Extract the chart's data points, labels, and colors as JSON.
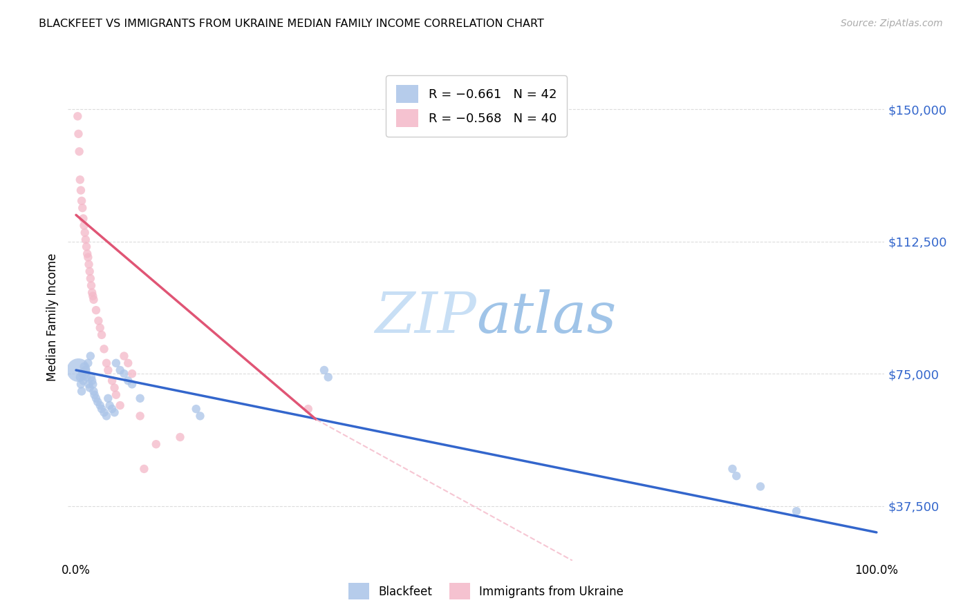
{
  "title": "BLACKFEET VS IMMIGRANTS FROM UKRAINE MEDIAN FAMILY INCOME CORRELATION CHART",
  "source": "Source: ZipAtlas.com",
  "ylabel": "Median Family Income",
  "background_color": "#ffffff",
  "grid_color": "#cccccc",
  "watermark_zip": "ZIP",
  "watermark_atlas": "atlas",
  "blue_color": "#aac4e8",
  "pink_color": "#f4b8c8",
  "blue_line_color": "#3366cc",
  "pink_line_color": "#e05575",
  "pink_dash_color": "#f4b8c8",
  "legend_label1": "Blackfeet",
  "legend_label2": "Immigrants from Ukraine",
  "blue_scatter": [
    [
      0.003,
      76000
    ],
    [
      0.005,
      74000
    ],
    [
      0.006,
      72000
    ],
    [
      0.007,
      70000
    ],
    [
      0.008,
      75000
    ],
    [
      0.009,
      73000
    ],
    [
      0.01,
      77000
    ],
    [
      0.012,
      76000
    ],
    [
      0.013,
      74000
    ],
    [
      0.015,
      78000
    ],
    [
      0.016,
      72000
    ],
    [
      0.017,
      71000
    ],
    [
      0.018,
      80000
    ],
    [
      0.019,
      74000
    ],
    [
      0.02,
      73000
    ],
    [
      0.021,
      72000
    ],
    [
      0.022,
      70000
    ],
    [
      0.023,
      69000
    ],
    [
      0.025,
      68000
    ],
    [
      0.027,
      67000
    ],
    [
      0.03,
      66000
    ],
    [
      0.032,
      65000
    ],
    [
      0.035,
      64000
    ],
    [
      0.038,
      63000
    ],
    [
      0.04,
      68000
    ],
    [
      0.042,
      66000
    ],
    [
      0.045,
      65000
    ],
    [
      0.048,
      64000
    ],
    [
      0.05,
      78000
    ],
    [
      0.055,
      76000
    ],
    [
      0.06,
      75000
    ],
    [
      0.065,
      73000
    ],
    [
      0.07,
      72000
    ],
    [
      0.08,
      68000
    ],
    [
      0.15,
      65000
    ],
    [
      0.155,
      63000
    ],
    [
      0.31,
      76000
    ],
    [
      0.315,
      74000
    ],
    [
      0.82,
      48000
    ],
    [
      0.825,
      46000
    ],
    [
      0.855,
      43000
    ],
    [
      0.9,
      36000
    ]
  ],
  "blue_size": [
    80,
    80,
    80,
    80,
    80,
    80,
    80,
    80,
    80,
    80,
    80,
    80,
    80,
    80,
    80,
    80,
    80,
    80,
    80,
    80,
    80,
    80,
    80,
    80,
    80,
    80,
    80,
    80,
    80,
    80,
    80,
    80,
    80,
    80,
    80,
    80,
    80,
    80,
    80,
    80,
    80,
    80
  ],
  "blue_big_idx": 0,
  "pink_scatter": [
    [
      0.002,
      148000
    ],
    [
      0.003,
      143000
    ],
    [
      0.004,
      138000
    ],
    [
      0.005,
      130000
    ],
    [
      0.006,
      127000
    ],
    [
      0.007,
      124000
    ],
    [
      0.008,
      122000
    ],
    [
      0.009,
      119000
    ],
    [
      0.01,
      117000
    ],
    [
      0.011,
      115000
    ],
    [
      0.012,
      113000
    ],
    [
      0.013,
      111000
    ],
    [
      0.014,
      109000
    ],
    [
      0.015,
      108000
    ],
    [
      0.016,
      106000
    ],
    [
      0.017,
      104000
    ],
    [
      0.018,
      102000
    ],
    [
      0.019,
      100000
    ],
    [
      0.02,
      98000
    ],
    [
      0.021,
      97000
    ],
    [
      0.022,
      96000
    ],
    [
      0.025,
      93000
    ],
    [
      0.028,
      90000
    ],
    [
      0.03,
      88000
    ],
    [
      0.032,
      86000
    ],
    [
      0.035,
      82000
    ],
    [
      0.038,
      78000
    ],
    [
      0.04,
      76000
    ],
    [
      0.045,
      73000
    ],
    [
      0.048,
      71000
    ],
    [
      0.05,
      69000
    ],
    [
      0.055,
      66000
    ],
    [
      0.06,
      80000
    ],
    [
      0.065,
      78000
    ],
    [
      0.07,
      75000
    ],
    [
      0.08,
      63000
    ],
    [
      0.085,
      48000
    ],
    [
      0.1,
      55000
    ],
    [
      0.13,
      57000
    ],
    [
      0.29,
      65000
    ]
  ],
  "ylim": [
    22000,
    160000
  ],
  "xlim": [
    -0.01,
    1.01
  ],
  "ytick_vals": [
    37500,
    75000,
    112500,
    150000
  ],
  "ytick_labels": [
    "$37,500",
    "$75,000",
    "$112,500",
    "$150,000"
  ],
  "xtick_vals": [
    0.0,
    1.0
  ],
  "xtick_labels": [
    "0.0%",
    "100.0%"
  ]
}
